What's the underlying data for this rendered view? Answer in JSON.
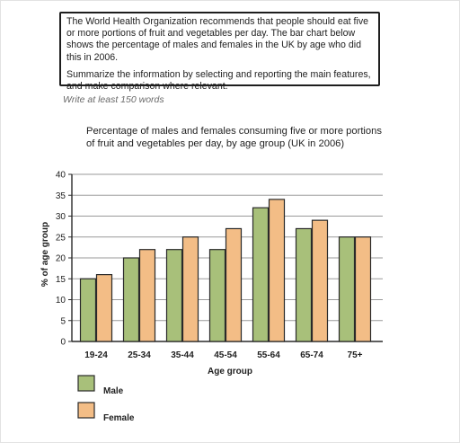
{
  "task": {
    "paragraph1": "The World Health Organization recommends that people should eat five or more portions of fruit and vegetables per day. The bar chart below shows the percentage of males and females in the UK by age who did this in 2006.",
    "paragraph2": "Summarize the information by selecting and reporting the main features, and make comparison where relevant."
  },
  "instruction": "Write at least 150 words",
  "colors": {
    "male": "#a8c07a",
    "female": "#f3bd86",
    "outline": "#2a2a2a",
    "grid": "#9a9a9a"
  },
  "chart_data": {
    "type": "bar",
    "title": "Percentage of males and females consuming five or more portions of fruit and vegetables per day, by age group (UK in 2006)",
    "xlabel": "Age group",
    "ylabel": "% of age group",
    "ylim": [
      0,
      40
    ],
    "yticks": [
      0,
      5,
      10,
      15,
      20,
      25,
      30,
      35,
      40
    ],
    "grid": true,
    "legend_position": "bottom-left",
    "categories": [
      "19-24",
      "25-34",
      "35-44",
      "45-54",
      "55-64",
      "65-74",
      "75+"
    ],
    "series": [
      {
        "name": "Male",
        "values": [
          15,
          20,
          22,
          22,
          32,
          27,
          25
        ]
      },
      {
        "name": "Female",
        "values": [
          16,
          22,
          25,
          27,
          34,
          29,
          25
        ]
      }
    ]
  }
}
